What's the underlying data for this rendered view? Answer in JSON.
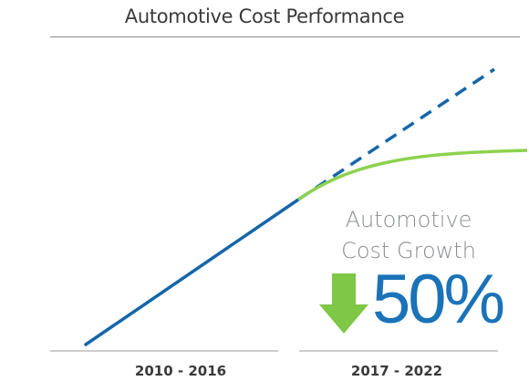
{
  "chart_data": {
    "type": "line",
    "title": "Automotive Cost Performance",
    "categories": [
      "2010 - 2016",
      "2017 - 2022"
    ],
    "series": [],
    "annotation": {
      "label": "Automotive Cost Growth",
      "value": "50%",
      "direction": "down"
    },
    "colors": {
      "historical": "#1466a8",
      "projected": "#1466a8",
      "actual": "#8dd24f",
      "arrow": "#7ec845",
      "value": "#1a73b8"
    }
  }
}
